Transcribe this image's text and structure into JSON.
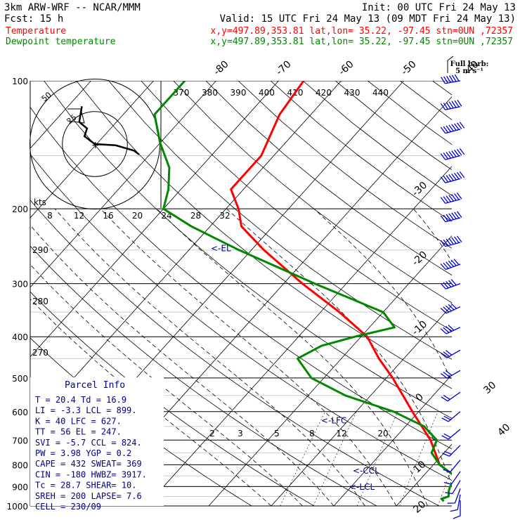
{
  "header": {
    "model": "3km ARW-WRF -- NCAR/MMM",
    "init": "Init: 00 UTC Fri 24 May 13",
    "fcst": "Fcst:   15 h",
    "valid": "Valid: 15 UTC Fri 24 May 13 (09 MDT Fri 24 May 13)",
    "temp_label": "Temperature",
    "dew_label": "Dewpoint temperature",
    "temp_loc": "x,y=497.89,353.81   lat,lon= 35.22, -97.45   stn=0UN ,72357",
    "dew_loc": "x,y=497.89,353.81   lat,lon= 35.22, -97.45   stn=0UN ,72357"
  },
  "barb_legend": {
    "line1": "Full barb:",
    "line2": "5 m s⁻¹"
  },
  "colors": {
    "temperature": "#ff0000",
    "dewpoint": "#008800",
    "grid": "#000000",
    "text": "#000000",
    "wind": "#0000cc",
    "box": "#000088"
  },
  "hodograph": {
    "units": "kts",
    "rings": [
      "25",
      "50"
    ],
    "points": [
      [
        -10,
        29
      ],
      [
        -12,
        17
      ],
      [
        -6,
        12
      ],
      [
        -8,
        6
      ],
      [
        0,
        0
      ],
      [
        16,
        -1
      ],
      [
        30,
        -5
      ],
      [
        34,
        -8
      ]
    ]
  },
  "parcel_info": {
    "title": "Parcel Info",
    "lines": [
      "T  =    20.4  Td =  16.9",
      "LI =    -3.3  LCL =  899.",
      "K  =     40   LFC =  627.",
      "TT =     56   EL  =  247.",
      "SVI =   -5.7  CCL =  824.",
      "PW  =  3.98   YGP =   0.2",
      "CAPE =   432  SWEAT=  369",
      "CIN  =  -180  HWBZ= 3917.",
      "Tc  =  28.7   SHEAR=  10.",
      "SREH =  200   LAPSE=  7.6",
      "CELL = 230/09"
    ]
  },
  "chart_data": {
    "type": "line",
    "title": "3km ARW-WRF -- NCAR/MMM",
    "y_axis": "pressure (hPa), log scale",
    "ylim": [
      1000,
      100
    ],
    "pressure_labels": [
      "100",
      "200",
      "300",
      "400",
      "500",
      "600",
      "700",
      "800",
      "900",
      "1000"
    ],
    "isotherm_labels": [
      "-80",
      "-70",
      "-60",
      "-50",
      "-40",
      "-30",
      "-20",
      "-10",
      "0",
      "10",
      "20",
      "30",
      "40"
    ],
    "theta_e_labels": [
      "370",
      "380",
      "390",
      "400",
      "410",
      "420",
      "430",
      "440"
    ],
    "theta_labels": [
      "290",
      "280",
      "270"
    ],
    "mixing_ratio_labels": [
      "2",
      "3",
      "5",
      "8",
      "12",
      "20"
    ],
    "hodo_speed_labels": [
      "8",
      "12",
      "16",
      "20",
      "24",
      "28",
      "32"
    ],
    "markers": [
      {
        "label": "<-EL",
        "p": 247
      },
      {
        "label": "<-LFC",
        "p": 627
      },
      {
        "label": "<-CCL",
        "p": 824
      },
      {
        "label": "<-LCL",
        "p": 899
      }
    ],
    "series": [
      {
        "name": "Temperature",
        "p": [
          975,
          962,
          950,
          925,
          900,
          850,
          800,
          700,
          600,
          500,
          450,
          400,
          350,
          300,
          250,
          220,
          200,
          180,
          150,
          120,
          100
        ],
        "t": [
          20.4,
          19.8,
          21.8,
          20,
          18,
          15,
          11,
          6,
          -1,
          -9,
          -14,
          -19,
          -27,
          -37,
          -48,
          -55,
          -58,
          -62,
          -62,
          -65,
          -66
        ]
      },
      {
        "name": "Dewpoint temperature",
        "p": [
          975,
          962,
          950,
          925,
          900,
          880,
          850,
          800,
          750,
          700,
          650,
          600,
          550,
          500,
          450,
          420,
          400,
          380,
          350,
          300,
          250,
          220,
          200,
          180,
          160,
          140,
          120,
          100
        ],
        "t": [
          16.9,
          16.2,
          17,
          16.3,
          15.8,
          15.8,
          15,
          11,
          8,
          7,
          3,
          -4,
          -14,
          -22,
          -27,
          -25,
          -21,
          -16,
          -20,
          -35,
          -52,
          -63,
          -70,
          -72,
          -75,
          -80,
          -85,
          -85
        ]
      }
    ]
  },
  "wind_profile": {
    "units": "m/s",
    "levels": [
      {
        "p": 100,
        "speed": 30,
        "dir": 260
      },
      {
        "p": 115,
        "speed": 35,
        "dir": 258
      },
      {
        "p": 130,
        "speed": 40,
        "dir": 255
      },
      {
        "p": 150,
        "speed": 42,
        "dir": 255
      },
      {
        "p": 170,
        "speed": 40,
        "dir": 255
      },
      {
        "p": 190,
        "speed": 38,
        "dir": 255
      },
      {
        "p": 210,
        "speed": 35,
        "dir": 255
      },
      {
        "p": 240,
        "speed": 35,
        "dir": 255
      },
      {
        "p": 270,
        "speed": 32,
        "dir": 250
      },
      {
        "p": 300,
        "speed": 28,
        "dir": 250
      },
      {
        "p": 340,
        "speed": 25,
        "dir": 245
      },
      {
        "p": 380,
        "speed": 22,
        "dir": 245
      },
      {
        "p": 430,
        "speed": 18,
        "dir": 240
      },
      {
        "p": 480,
        "speed": 15,
        "dir": 240
      },
      {
        "p": 540,
        "speed": 12,
        "dir": 235
      },
      {
        "p": 600,
        "speed": 10,
        "dir": 230
      },
      {
        "p": 660,
        "speed": 10,
        "dir": 230
      },
      {
        "p": 720,
        "speed": 10,
        "dir": 225
      },
      {
        "p": 780,
        "speed": 8,
        "dir": 220
      },
      {
        "p": 830,
        "speed": 8,
        "dir": 215
      },
      {
        "p": 870,
        "speed": 6,
        "dir": 210
      },
      {
        "p": 910,
        "speed": 5,
        "dir": 200
      },
      {
        "p": 940,
        "speed": 5,
        "dir": 190
      },
      {
        "p": 970,
        "speed": 5,
        "dir": 180
      }
    ]
  }
}
